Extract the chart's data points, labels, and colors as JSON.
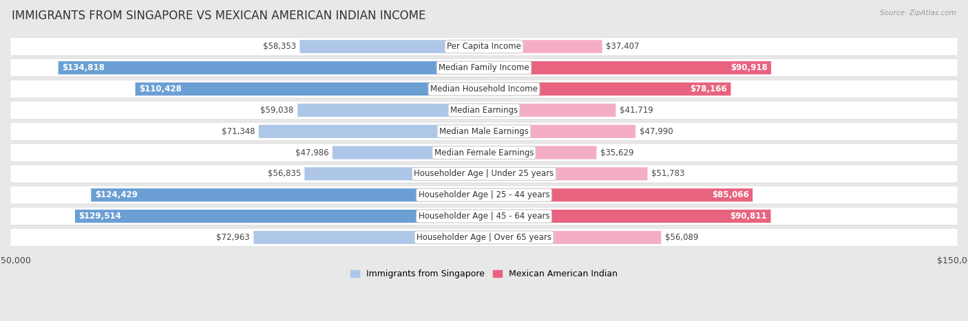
{
  "title": "IMMIGRANTS FROM SINGAPORE VS MEXICAN AMERICAN INDIAN INCOME",
  "source": "Source: ZipAtlas.com",
  "categories": [
    "Per Capita Income",
    "Median Family Income",
    "Median Household Income",
    "Median Earnings",
    "Median Male Earnings",
    "Median Female Earnings",
    "Householder Age | Under 25 years",
    "Householder Age | 25 - 44 years",
    "Householder Age | 45 - 64 years",
    "Householder Age | Over 65 years"
  ],
  "singapore_values": [
    58353,
    134818,
    110428,
    59038,
    71348,
    47986,
    56835,
    124429,
    129514,
    72963
  ],
  "mexican_values": [
    37407,
    90918,
    78166,
    41719,
    47990,
    35629,
    51783,
    85066,
    90811,
    56089
  ],
  "singapore_color_light": "#aec6e8",
  "singapore_color_dark": "#6b9fd4",
  "mexican_color_light": "#f4aec4",
  "mexican_color_dark": "#e8637f",
  "max_value": 150000,
  "background_color": "#e8e8e8",
  "row_bg_color": "#ffffff",
  "label_bg_color": "#ffffff",
  "title_fontsize": 12,
  "tick_fontsize": 9,
  "label_fontsize": 8.5,
  "value_fontsize": 8.5,
  "singapore_large_threshold": 80000,
  "mexican_large_threshold": 65000
}
